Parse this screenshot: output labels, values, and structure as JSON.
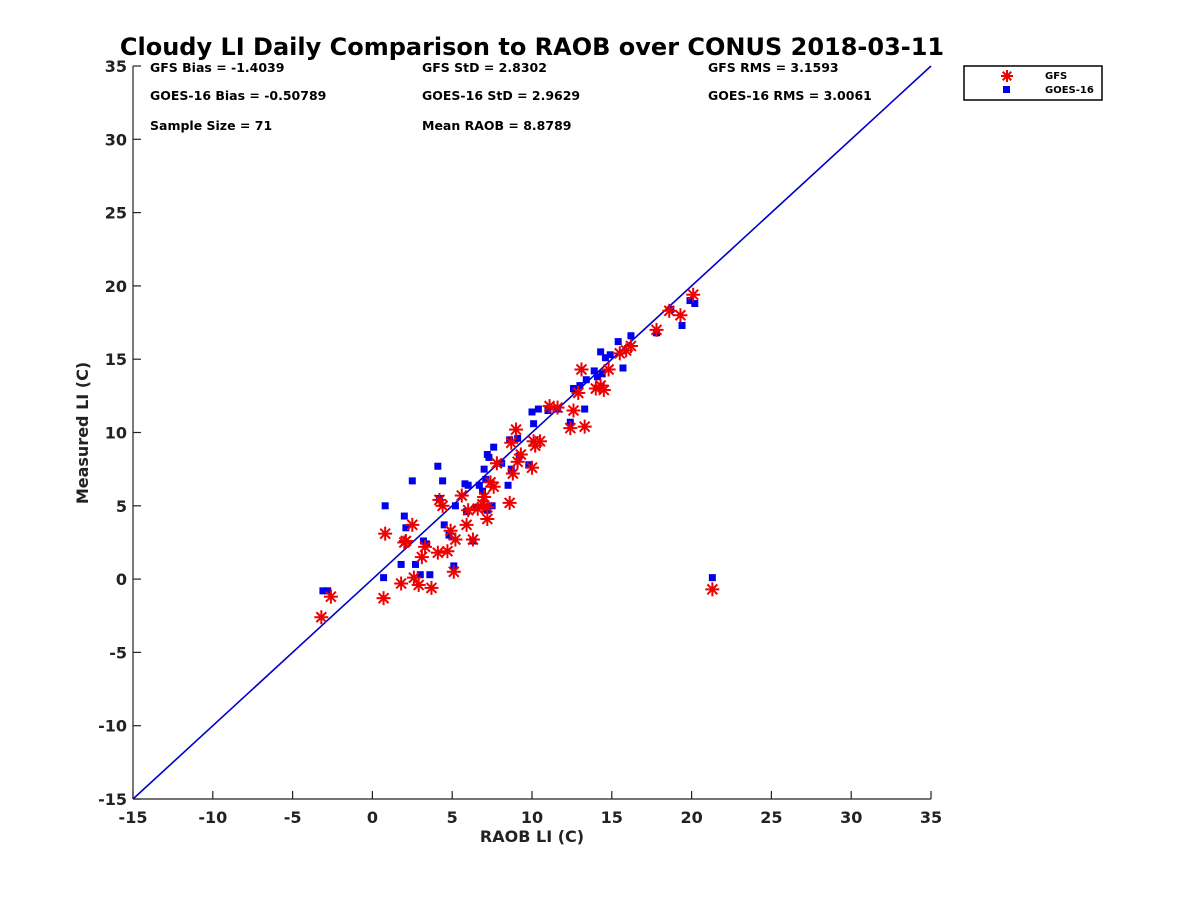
{
  "chart_data": {
    "type": "scatter",
    "title": "Cloudy LI Daily Comparison to RAOB over CONUS 2018-03-11",
    "xlabel": "RAOB LI (C)",
    "ylabel": "Measured LI (C)",
    "xlim": [
      -15,
      35
    ],
    "ylim": [
      -15,
      35
    ],
    "xticks": [
      "-15",
      "-10",
      "-5",
      "0",
      "5",
      "10",
      "15",
      "20",
      "25",
      "30",
      "35"
    ],
    "yticks": [
      "-15",
      "-10",
      "-5",
      "0",
      "5",
      "10",
      "15",
      "20",
      "25",
      "30",
      "35"
    ],
    "grid": false,
    "legend_position": "outside-top-right",
    "stats": [
      "GFS Bias = -1.4039",
      "GFS StD = 2.8302",
      "GFS RMS = 3.1593",
      "GOES-16 Bias = -0.50789",
      "GOES-16 StD = 2.9629",
      "GOES-16 RMS = 3.0061",
      "Sample Size = 71",
      "Mean RAOB = 8.8789"
    ],
    "reference_line": {
      "x": [
        -15,
        35
      ],
      "y": [
        -15,
        35
      ],
      "color": "#0000cc"
    },
    "series": [
      {
        "name": "GFS",
        "marker": "asterisk",
        "color": "#ee0000",
        "x": [
          -3.2,
          -2.6,
          0.7,
          0.8,
          1.8,
          2.0,
          2.1,
          2.5,
          2.6,
          2.9,
          3.1,
          3.3,
          3.7,
          4.1,
          4.2,
          4.4,
          4.7,
          4.9,
          5.1,
          5.2,
          5.6,
          5.9,
          6.0,
          6.3,
          6.6,
          6.9,
          7.0,
          7.2,
          7.2,
          7.4,
          7.6,
          7.8,
          8.6,
          8.7,
          8.8,
          9.0,
          9.1,
          9.3,
          10.0,
          10.1,
          10.2,
          10.5,
          11.1,
          11.6,
          12.4,
          12.6,
          12.9,
          13.1,
          13.3,
          14.0,
          14.3,
          14.5,
          14.8,
          15.5,
          15.9,
          16.2,
          17.8,
          18.6,
          19.3,
          20.1,
          21.3
        ],
        "y": [
          -2.6,
          -1.2,
          -1.3,
          3.1,
          -0.3,
          2.5,
          2.6,
          3.7,
          0.1,
          -0.4,
          1.5,
          2.2,
          -0.6,
          1.8,
          5.4,
          5.0,
          1.9,
          3.3,
          0.5,
          2.7,
          5.7,
          3.7,
          4.7,
          2.7,
          4.8,
          5.1,
          5.6,
          4.9,
          4.1,
          6.6,
          6.3,
          7.9,
          5.2,
          9.3,
          7.2,
          10.2,
          8.0,
          8.5,
          7.6,
          9.4,
          9.1,
          9.4,
          11.8,
          11.7,
          10.3,
          11.5,
          12.7,
          14.3,
          10.4,
          13.0,
          13.2,
          12.9,
          14.3,
          15.4,
          15.6,
          15.9,
          17.0,
          18.3,
          18.0,
          19.4,
          -0.7
        ]
      },
      {
        "name": "GOES-16",
        "marker": "square",
        "color": "#0000ee",
        "x": [
          -3.1,
          -2.8,
          0.7,
          0.8,
          1.8,
          2.0,
          2.1,
          2.5,
          2.7,
          3.0,
          3.2,
          3.4,
          3.6,
          4.1,
          4.2,
          4.4,
          4.5,
          4.8,
          5.1,
          5.2,
          5.8,
          5.9,
          6.0,
          6.3,
          6.5,
          6.7,
          6.9,
          7.0,
          7.1,
          7.2,
          7.2,
          7.3,
          7.5,
          7.6,
          8.1,
          8.5,
          8.6,
          8.7,
          9.1,
          9.2,
          9.8,
          10.0,
          10.1,
          10.4,
          11.0,
          11.6,
          12.4,
          12.6,
          13.0,
          13.3,
          13.4,
          13.9,
          14.1,
          14.3,
          14.4,
          14.6,
          14.9,
          15.4,
          15.7,
          16.2,
          17.8,
          18.7,
          19.4,
          19.9,
          20.2,
          21.3
        ],
        "y": [
          -0.8,
          -0.8,
          0.1,
          5.0,
          1.0,
          4.3,
          3.5,
          6.7,
          1.0,
          0.3,
          2.6,
          2.4,
          0.3,
          7.7,
          5.5,
          6.7,
          3.7,
          3.0,
          0.9,
          5.0,
          6.5,
          4.6,
          6.4,
          2.6,
          4.9,
          6.4,
          6.0,
          7.5,
          6.8,
          4.7,
          8.5,
          8.3,
          5.0,
          9.0,
          7.9,
          6.4,
          9.5,
          7.5,
          9.6,
          8.4,
          7.8,
          11.4,
          10.6,
          11.6,
          11.5,
          11.6,
          10.7,
          13.0,
          13.2,
          11.6,
          13.6,
          14.2,
          13.8,
          15.5,
          14.0,
          15.1,
          15.3,
          16.2,
          14.4,
          16.6,
          16.8,
          18.4,
          17.3,
          19.0,
          18.8,
          0.1
        ]
      }
    ]
  }
}
